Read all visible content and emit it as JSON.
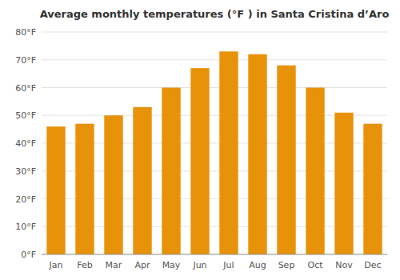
{
  "chart_data": {
    "type": "bar",
    "title": "Average monthly temperatures (°F ) in Santa Cristina d’Aro",
    "categories": [
      "Jan",
      "Feb",
      "Mar",
      "Apr",
      "May",
      "Jun",
      "Jul",
      "Aug",
      "Sep",
      "Oct",
      "Nov",
      "Dec"
    ],
    "values": [
      46,
      47,
      50,
      53,
      60,
      67,
      73,
      72,
      68,
      60,
      51,
      47
    ],
    "color": "#E8920A",
    "ylim": [
      0,
      80
    ],
    "yticks": [
      {
        "value": 0,
        "label": "0°F"
      },
      {
        "value": 10,
        "label": "10°F"
      },
      {
        "value": 20,
        "label": "20°F"
      },
      {
        "value": 30,
        "label": "30°F"
      },
      {
        "value": 40,
        "label": "40°F"
      },
      {
        "value": 50,
        "label": "50°F"
      },
      {
        "value": 60,
        "label": "60°F"
      },
      {
        "value": 70,
        "label": "70°F"
      },
      {
        "value": 80,
        "label": "80°F"
      }
    ],
    "grid": true
  }
}
